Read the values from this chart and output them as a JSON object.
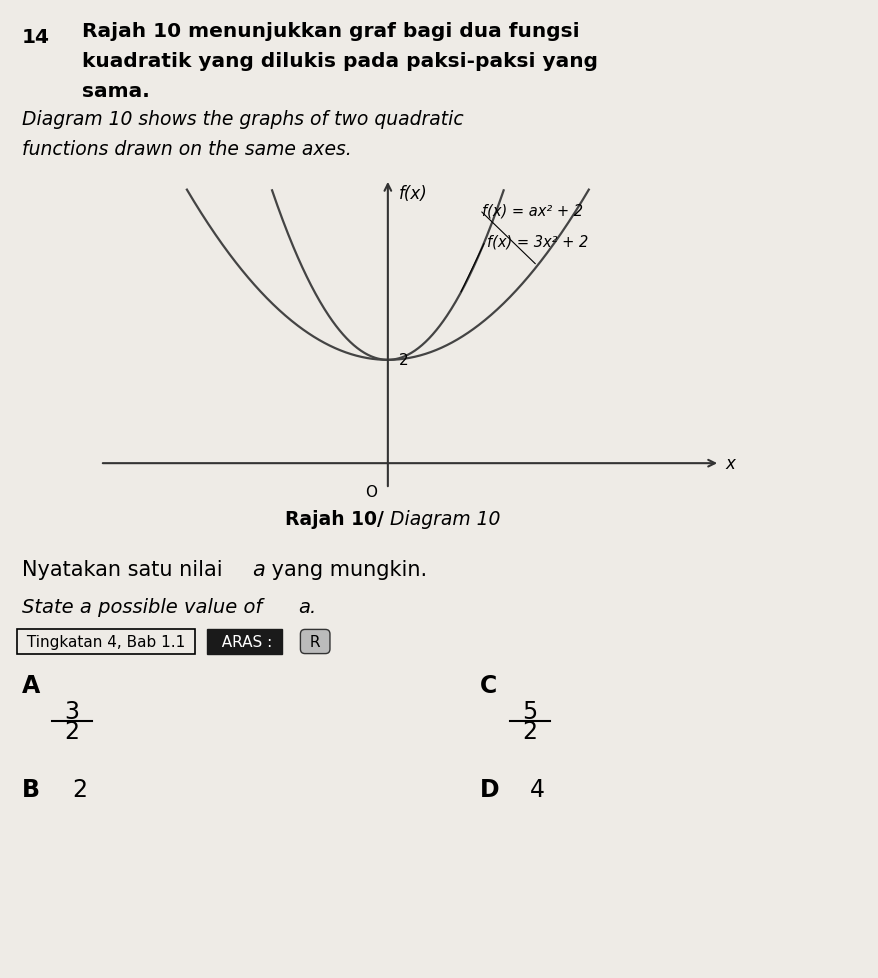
{
  "background_color": "#eeebe6",
  "question_number": "14",
  "text_line1_bold": "Rajah 10 menunjukkan graf bagi dua fungsi",
  "text_line2_bold": "kuadratik yang dilukis pada paksi-paksi yang",
  "text_line3_bold": "sama.",
  "text_line4_italic": "Diagram 10 shows the graphs of two quadratic",
  "text_line5_italic": "functions drawn on the same axes.",
  "diagram_label_bold": "Rajah 10/ ",
  "diagram_label_italic": "Diagram 10",
  "fx_label": "f(x)",
  "x_label": "x",
  "origin_label": "O",
  "y_intercept_label": "2",
  "eq1": "f(x) = ax² + 2",
  "eq2": "f(x) = 3x² + 2",
  "question_text1": "Nyatakan satu nilai ",
  "question_italic_a": "a",
  "question_text1_end": " yang mungkin.",
  "question_text2": "State a possible value of a.",
  "tag1": "Tingkatan 4, Bab 1.1",
  "tag2_label": "ARAS : ",
  "tag2_value": "R",
  "opt_A_label": "A",
  "opt_A_num": "3",
  "opt_A_den": "2",
  "opt_B_label": "B",
  "opt_B_val": "2",
  "opt_C_label": "C",
  "opt_C_num": "5",
  "opt_C_den": "2",
  "opt_D_label": "D",
  "opt_D_val": "4",
  "curve_color": "#444444",
  "axis_color": "#333333",
  "a_coeff": 1.0,
  "a3_coeff": 3.0
}
